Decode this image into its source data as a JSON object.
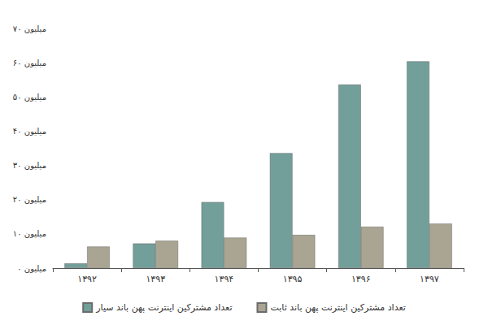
{
  "chart_data": {
    "type": "bar",
    "categories": [
      "۱۳۹۲",
      "۱۳۹۳",
      "۱۳۹۴",
      "۱۳۹۵",
      "۱۳۹۶",
      "۱۳۹۷"
    ],
    "series": [
      {
        "name": "تعداد مشترکین اینترنت پهن باند سیار",
        "color": "#729f9a",
        "values": [
          1.4,
          7.2,
          19.3,
          33.6,
          53.6,
          60.4
        ]
      },
      {
        "name": "تعداد مشترکین اینترنت پهن باند ثابت",
        "color": "#a9a592",
        "values": [
          6.3,
          8.0,
          8.9,
          9.7,
          12.1,
          13.0
        ]
      }
    ],
    "ylim": [
      0,
      70
    ],
    "yticks": [
      {
        "value": 0,
        "label": "۰ میلیون"
      },
      {
        "value": 10,
        "label": "۱۰ میلیون"
      },
      {
        "value": 20,
        "label": "۲۰ میلیون"
      },
      {
        "value": 30,
        "label": "۳۰ میلیون"
      },
      {
        "value": 40,
        "label": "۴۰ میلیون"
      },
      {
        "value": 50,
        "label": "۵۰ میلیون"
      },
      {
        "value": 60,
        "label": "۶۰ میلیون"
      },
      {
        "value": 70,
        "label": "۷۰ میلیون"
      }
    ],
    "grid": false,
    "legend": "bottom"
  }
}
